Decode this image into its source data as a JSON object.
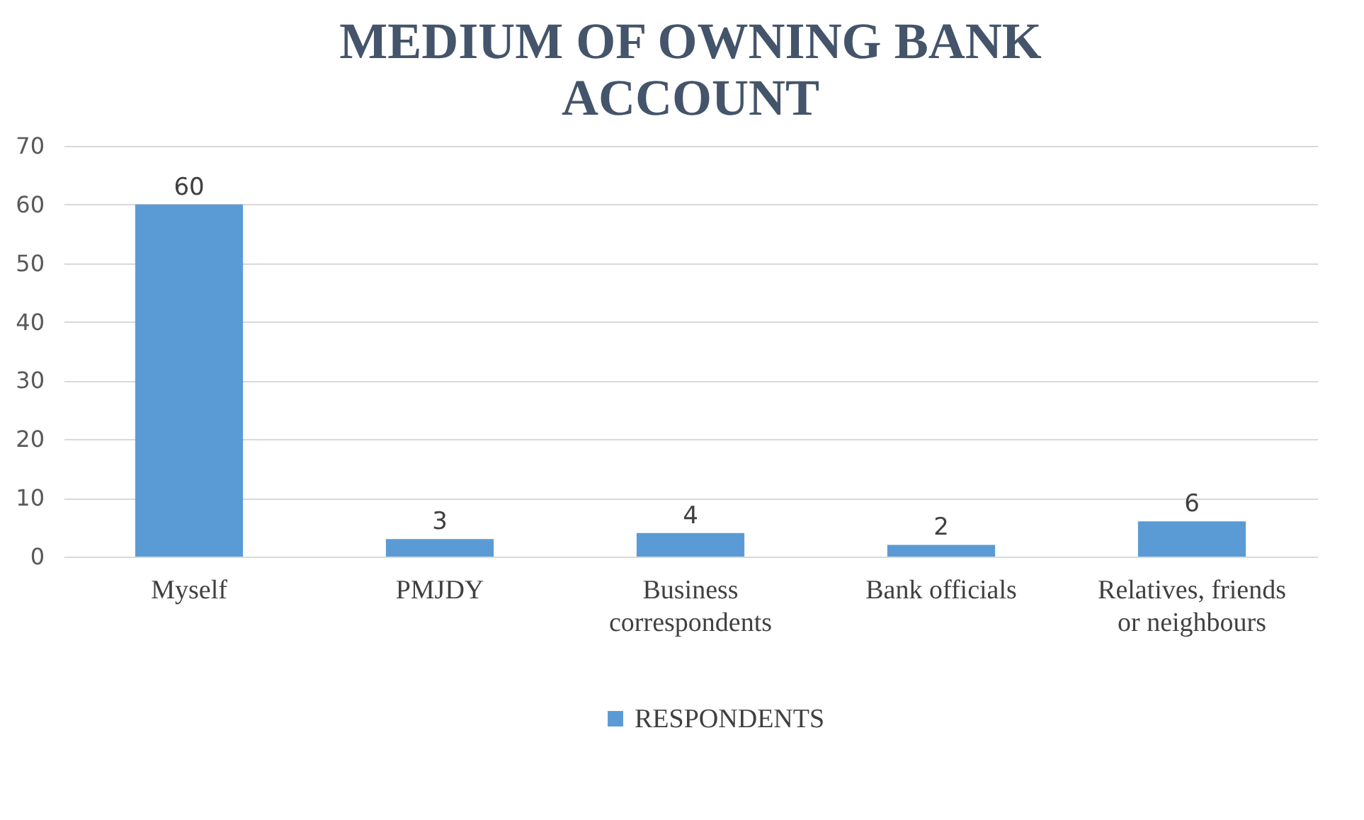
{
  "chart_data": {
    "type": "bar",
    "title": "MEDIUM OF OWNING BANK ACCOUNT",
    "categories": [
      "Myself",
      "PMJDY",
      "Business correspondents",
      "Bank officials",
      "Relatives, friends or neighbours"
    ],
    "series": [
      {
        "name": "RESPONDENTS",
        "color": "#5b9bd5",
        "values": [
          60,
          3,
          4,
          2,
          6
        ]
      }
    ],
    "ylim": [
      0,
      70
    ],
    "yticks": [
      0,
      10,
      20,
      30,
      40,
      50,
      60,
      70
    ],
    "grid": "y",
    "legend": "bottom",
    "data_labels": true
  }
}
